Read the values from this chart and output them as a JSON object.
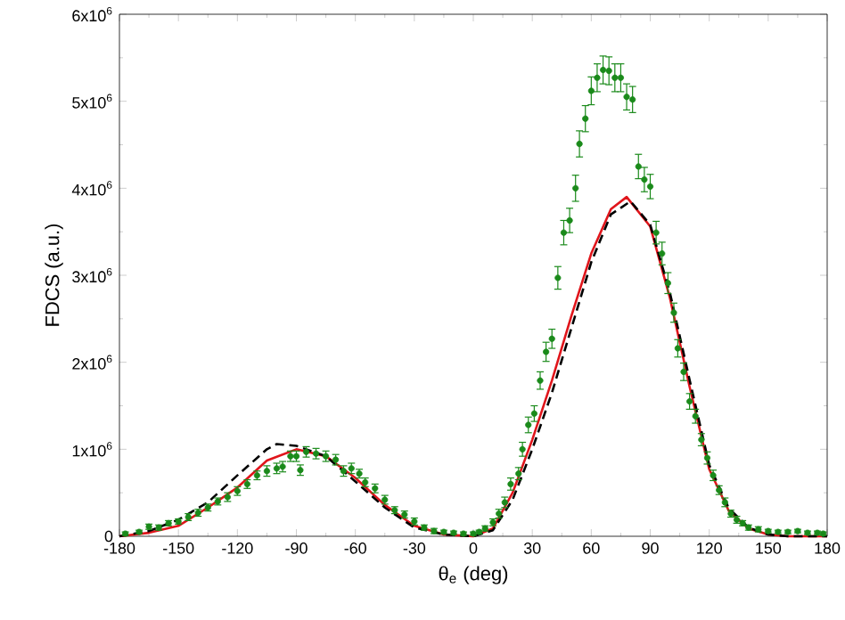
{
  "chart_data": {
    "type": "scatter",
    "xlabel": "θ$_{e}$ (deg)",
    "ylabel": "FDCS (a.u.)",
    "xlim": [
      -180,
      180
    ],
    "ylim": [
      0,
      6000000
    ],
    "xticks": [
      -180,
      -150,
      -120,
      -90,
      -60,
      -30,
      0,
      30,
      60,
      90,
      120,
      150,
      180
    ],
    "yticks": [
      0,
      {
        "value": 1000000,
        "label": "1x10$^{6}$"
      },
      {
        "value": 2000000,
        "label": "2x10$^{6}$"
      },
      {
        "value": 3000000,
        "label": "3x10$^{6}$"
      },
      {
        "value": 4000000,
        "label": "4x10$^{6}$"
      },
      {
        "value": 5000000,
        "label": "5x10$^{6}$"
      },
      {
        "value": 6000000,
        "label": "6x10$^{6}$"
      }
    ],
    "grid": false,
    "marker": "circle",
    "series": [
      {
        "color": "#1a8a1a",
        "x": [
          -177,
          -170,
          -165,
          -160,
          -155,
          -150,
          -145,
          -140,
          -135,
          -130,
          -125,
          -120,
          -115,
          -110,
          -105,
          -100,
          -97,
          -93,
          -90,
          -88,
          -85,
          -80,
          -75,
          -70,
          -66,
          -62,
          -58,
          -55,
          -50,
          -45,
          -40,
          -35,
          -30,
          -25,
          -20,
          -15,
          -10,
          -5,
          0,
          3,
          6,
          10,
          13,
          16,
          19,
          23,
          25,
          28,
          31,
          34,
          37,
          40,
          43,
          46,
          49,
          52,
          54,
          57,
          60,
          63,
          66,
          69,
          72,
          75,
          78,
          81,
          84,
          87,
          90,
          93,
          96,
          99,
          102,
          104,
          107,
          110,
          113,
          116,
          119,
          122,
          125,
          128,
          131,
          134,
          137,
          140,
          145,
          150,
          155,
          160,
          165,
          170,
          175,
          178
        ],
        "values": [
          30000,
          50000,
          110000,
          100000,
          150000,
          170000,
          220000,
          270000,
          330000,
          400000,
          450000,
          520000,
          600000,
          700000,
          750000,
          780000,
          800000,
          920000,
          920000,
          760000,
          970000,
          950000,
          920000,
          880000,
          750000,
          780000,
          720000,
          620000,
          550000,
          420000,
          300000,
          250000,
          170000,
          100000,
          60000,
          50000,
          40000,
          30000,
          30000,
          50000,
          90000,
          160000,
          260000,
          390000,
          600000,
          720000,
          1000000,
          1280000,
          1410000,
          1790000,
          2120000,
          2270000,
          2970000,
          3490000,
          3630000,
          4000000,
          4510000,
          4800000,
          5120000,
          5270000,
          5360000,
          5350000,
          5270000,
          5270000,
          5050000,
          5020000,
          4250000,
          4100000,
          4020000,
          3490000,
          3250000,
          2910000,
          2570000,
          2160000,
          1890000,
          1550000,
          1380000,
          1110000,
          900000,
          700000,
          530000,
          390000,
          260000,
          190000,
          150000,
          100000,
          80000,
          60000,
          50000,
          50000,
          60000,
          40000,
          40000,
          30000
        ],
        "errors": [
          20000,
          20000,
          30000,
          30000,
          30000,
          30000,
          40000,
          40000,
          40000,
          40000,
          50000,
          50000,
          50000,
          50000,
          60000,
          60000,
          60000,
          60000,
          60000,
          60000,
          60000,
          60000,
          60000,
          60000,
          60000,
          60000,
          50000,
          50000,
          50000,
          50000,
          40000,
          40000,
          40000,
          30000,
          30000,
          20000,
          20000,
          20000,
          20000,
          20000,
          30000,
          40000,
          50000,
          60000,
          70000,
          70000,
          80000,
          90000,
          90000,
          100000,
          110000,
          110000,
          130000,
          140000,
          140000,
          150000,
          150000,
          150000,
          160000,
          160000,
          160000,
          160000,
          160000,
          160000,
          150000,
          150000,
          140000,
          140000,
          140000,
          130000,
          130000,
          120000,
          110000,
          100000,
          100000,
          90000,
          80000,
          70000,
          70000,
          60000,
          50000,
          50000,
          40000,
          40000,
          30000,
          30000,
          30000,
          20000,
          20000,
          20000,
          20000,
          20000,
          20000,
          20000
        ]
      },
      {
        "type": "line",
        "color": "#e0151b",
        "line_style": "solid",
        "marker": "none",
        "x": [
          -180,
          -165,
          -150,
          -135,
          -120,
          -105,
          -90,
          -75,
          -60,
          -45,
          -30,
          -15,
          0,
          10,
          20,
          30,
          40,
          50,
          60,
          70,
          78,
          90,
          100,
          110,
          120,
          130,
          140,
          150,
          160,
          170,
          180
        ],
        "values": [
          0,
          40000,
          120000,
          330000,
          560000,
          870000,
          1000000,
          920000,
          670000,
          360000,
          120000,
          20000,
          0,
          90000,
          500000,
          1110000,
          1790000,
          2540000,
          3250000,
          3760000,
          3900000,
          3560000,
          2740000,
          1720000,
          770000,
          290000,
          90000,
          20000,
          0,
          0,
          0
        ]
      },
      {
        "type": "line",
        "color": "#000000",
        "line_style": "dashed",
        "marker": "none",
        "x": [
          -180,
          -165,
          -150,
          -135,
          -120,
          -105,
          -100,
          -90,
          -75,
          -60,
          -45,
          -30,
          -15,
          0,
          10,
          20,
          30,
          40,
          50,
          60,
          70,
          80,
          90,
          100,
          110,
          120,
          130,
          140,
          150,
          160,
          170,
          180
        ],
        "values": [
          0,
          60000,
          190000,
          390000,
          700000,
          1000000,
          1060000,
          1040000,
          920000,
          630000,
          330000,
          100000,
          20000,
          0,
          70000,
          420000,
          1000000,
          1650000,
          2400000,
          3150000,
          3700000,
          3850000,
          3580000,
          2800000,
          1800000,
          820000,
          320000,
          100000,
          20000,
          0,
          0,
          0
        ]
      }
    ]
  }
}
